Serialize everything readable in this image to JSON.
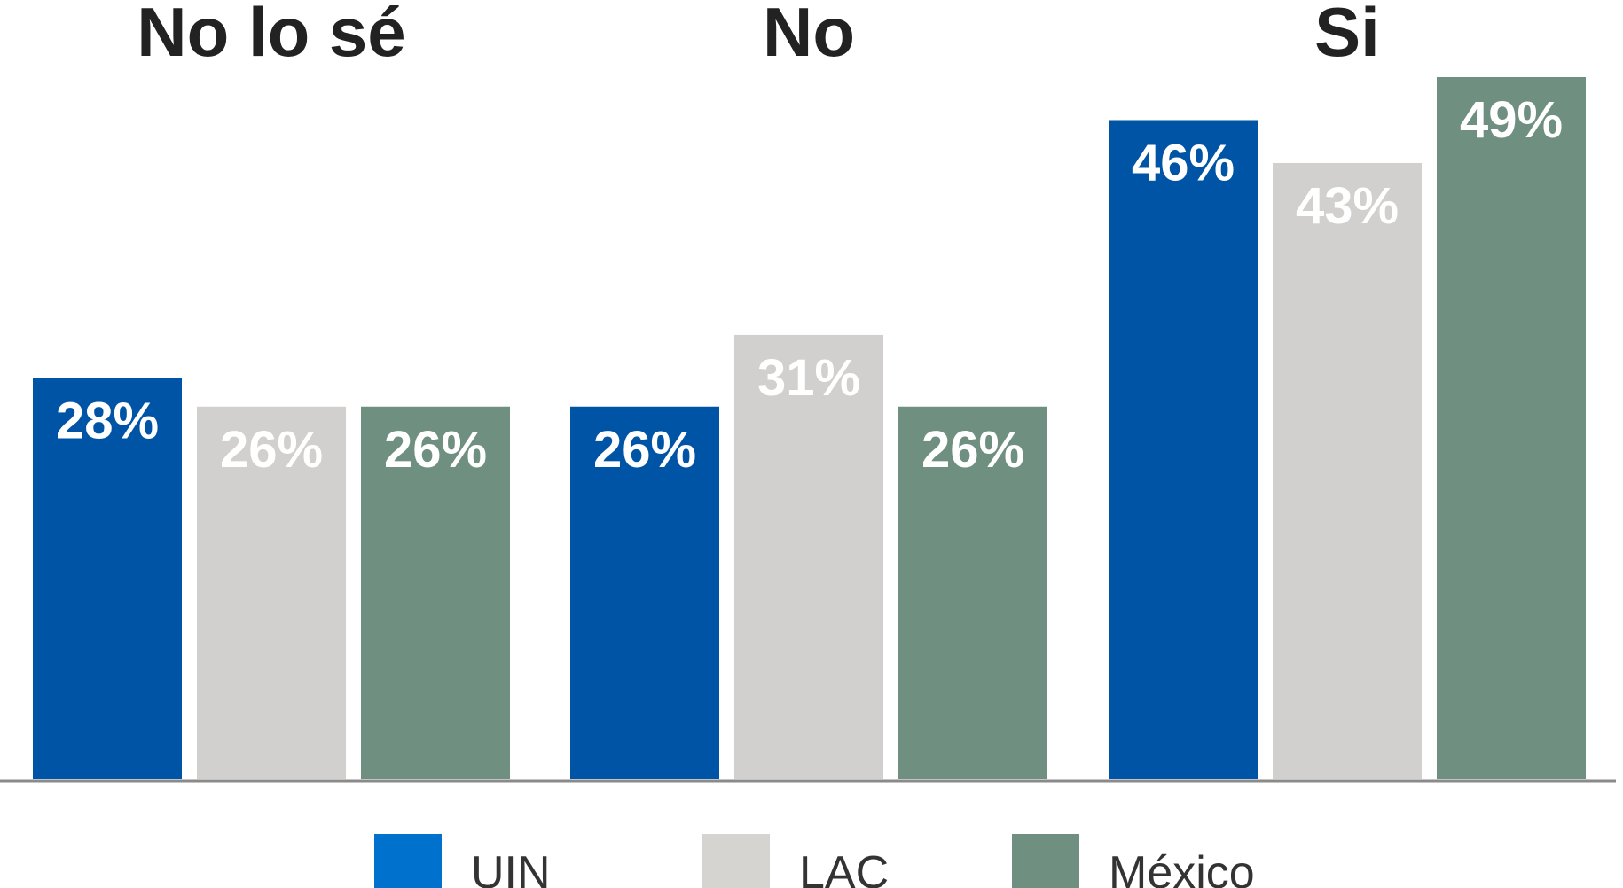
{
  "chart_data": {
    "type": "bar",
    "categories": [
      "No lo sé",
      "No",
      "Si"
    ],
    "series": [
      {
        "name": "UIN",
        "values": [
          28,
          26,
          46
        ],
        "color": "#0054a6"
      },
      {
        "name": "LAC",
        "values": [
          26,
          31,
          43
        ],
        "color": "#d1d0ce"
      },
      {
        "name": "México",
        "values": [
          26,
          26,
          49
        ],
        "color": "#6f9081"
      }
    ],
    "value_suffix": "%",
    "title": "",
    "xlabel": "",
    "ylabel": "",
    "ylim": [
      0,
      49
    ],
    "grid": false,
    "legend_position": "bottom-center"
  }
}
